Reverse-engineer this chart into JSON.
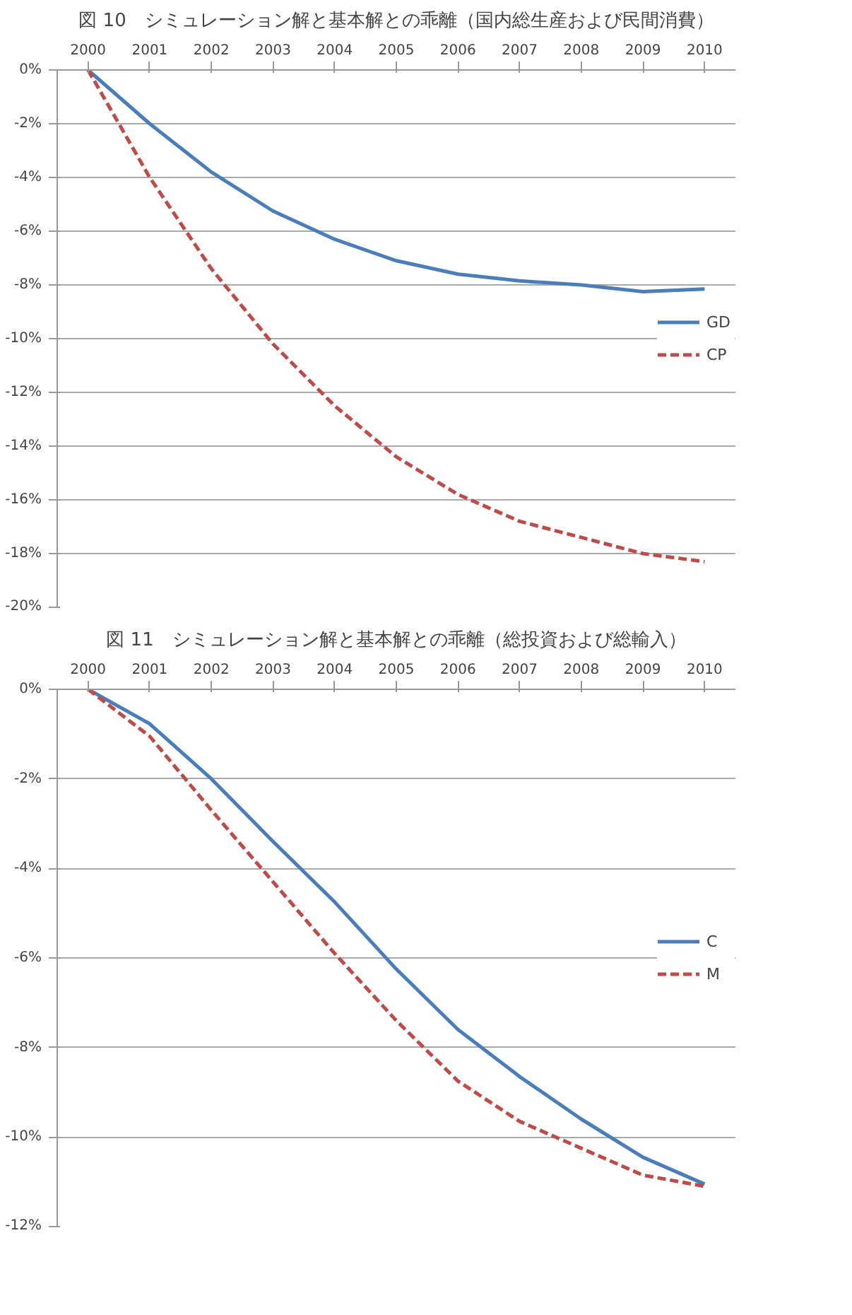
{
  "chart_data": [
    {
      "type": "line",
      "title": "図 10　シミュレーション解と基本解との乖離（国内総生産および民間消費）",
      "categories": [
        "2000",
        "2001",
        "2002",
        "2003",
        "2004",
        "2005",
        "2006",
        "2007",
        "2008",
        "2009",
        "2010"
      ],
      "ylim": [
        -20,
        0
      ],
      "yticks": [
        {
          "value": 0,
          "label": "0%"
        },
        {
          "value": -2,
          "label": "-2%"
        },
        {
          "value": -4,
          "label": "-4%"
        },
        {
          "value": -6,
          "label": "-6%"
        },
        {
          "value": -8,
          "label": "-8%"
        },
        {
          "value": -10,
          "label": "-10%"
        },
        {
          "value": -12,
          "label": "-12%"
        },
        {
          "value": -14,
          "label": "-14%"
        },
        {
          "value": -16,
          "label": "-16%"
        },
        {
          "value": -18,
          "label": "-18%"
        },
        {
          "value": -20,
          "label": "-20%"
        }
      ],
      "grid": "y",
      "legend": "right",
      "series": [
        {
          "name": "GD",
          "color": "#4a7ebb",
          "line_style": "solid",
          "values": [
            0,
            -2.0,
            -3.8,
            -5.25,
            -6.3,
            -7.1,
            -7.6,
            -7.85,
            -8.0,
            -8.25,
            -8.15
          ]
        },
        {
          "name": "CP",
          "color": "#be4b48",
          "line_style": "dashed",
          "values": [
            0,
            -4.0,
            -7.4,
            -10.2,
            -12.5,
            -14.4,
            -15.8,
            -16.8,
            -17.4,
            -18.0,
            -18.3
          ]
        }
      ]
    },
    {
      "type": "line",
      "title": "図 11　シミュレーション解と基本解との乖離（総投資および総輸入）",
      "categories": [
        "2000",
        "2001",
        "2002",
        "2003",
        "2004",
        "2005",
        "2006",
        "2007",
        "2008",
        "2009",
        "2010"
      ],
      "ylim": [
        -12,
        0
      ],
      "yticks": [
        {
          "value": 0,
          "label": "0%"
        },
        {
          "value": -2,
          "label": "-2%"
        },
        {
          "value": -4,
          "label": "-4%"
        },
        {
          "value": -6,
          "label": "-6%"
        },
        {
          "value": -8,
          "label": "-8%"
        },
        {
          "value": -10,
          "label": "-10%"
        },
        {
          "value": -12,
          "label": "-12%"
        }
      ],
      "grid": "y",
      "legend": "right",
      "series": [
        {
          "name": "C",
          "color": "#4a7ebb",
          "line_style": "solid",
          "values": [
            0,
            -0.77,
            -2.0,
            -3.4,
            -4.75,
            -6.25,
            -7.6,
            -8.65,
            -9.6,
            -10.45,
            -11.05
          ]
        },
        {
          "name": "M",
          "color": "#be4b48",
          "line_style": "dashed",
          "values": [
            0,
            -1.05,
            -2.7,
            -4.3,
            -5.9,
            -7.4,
            -8.75,
            -9.65,
            -10.25,
            -10.85,
            -11.1
          ]
        }
      ]
    }
  ]
}
